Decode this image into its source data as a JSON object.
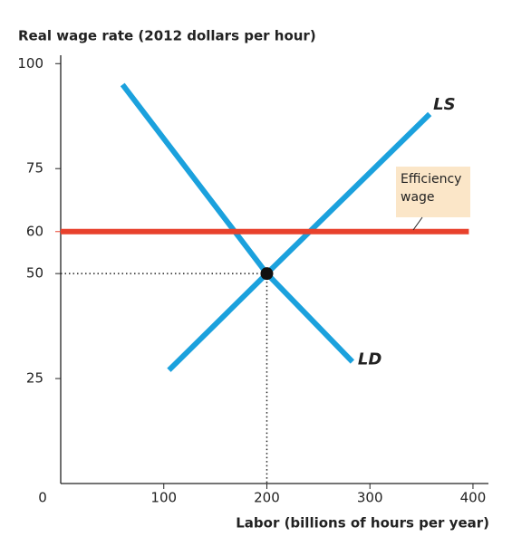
{
  "chart_data": {
    "type": "line",
    "y_label": "Real wage rate (2012 dollars per hour)",
    "x_label": "Labor (billions of hours per year)",
    "xlim": [
      0,
      415
    ],
    "ylim": [
      0,
      102
    ],
    "xticks": [
      0,
      100,
      200,
      300,
      400
    ],
    "yticks": [
      25,
      50,
      60,
      75,
      100
    ],
    "series": [
      {
        "name": "LD",
        "color": "#1ba1dd",
        "x": [
          60,
          200,
          283
        ],
        "values": [
          95,
          50,
          29
        ]
      },
      {
        "name": "LS",
        "color": "#1ba1dd",
        "x": [
          105,
          200,
          358
        ],
        "values": [
          27,
          50,
          88
        ]
      },
      {
        "name": "Efficiency wage",
        "color": "#e8412c",
        "x": [
          0,
          396
        ],
        "values": [
          60,
          60
        ]
      }
    ],
    "equilibrium": {
      "x": 200,
      "y": 50
    }
  }
}
